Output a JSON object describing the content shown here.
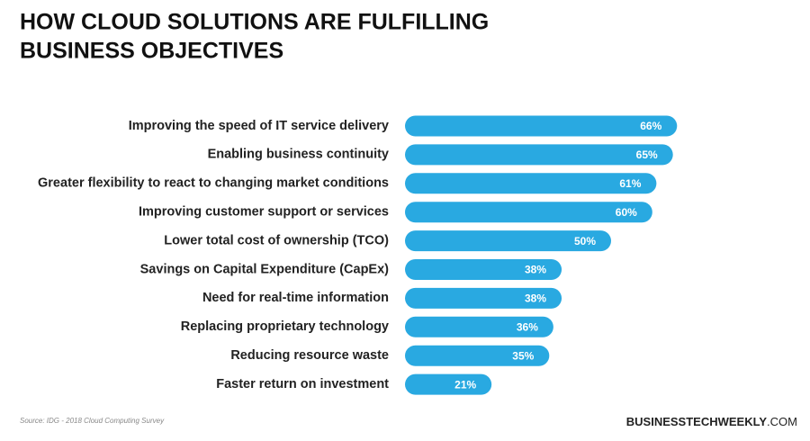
{
  "chart_data": {
    "type": "bar",
    "orientation": "horizontal",
    "title": [
      "HOW CLOUD SOLUTIONS ARE FULFILLING",
      "BUSINESS OBJECTIVES"
    ],
    "categories": [
      "Improving the speed of IT service delivery",
      "Enabling business continuity",
      "Greater flexibility to react to changing market conditions",
      "Improving customer support or services",
      "Lower total cost of ownership (TCO)",
      "Savings on Capital Expenditure (CapEx)",
      "Need for real-time information",
      "Replacing proprietary technology",
      "Reducing resource waste",
      "Faster return on investment"
    ],
    "values": [
      66,
      65,
      61,
      60,
      50,
      38,
      38,
      36,
      35,
      21
    ],
    "value_labels": [
      "66%",
      "65%",
      "61%",
      "60%",
      "50%",
      "38%",
      "38%",
      "36%",
      "35%",
      "21%"
    ],
    "color": "#29a9e1",
    "source": "Source: IDG - 2018 Cloud Computing Survey",
    "brand": "BUSINESSTECHWEEKLY",
    "brand_suffix": ".COM"
  }
}
